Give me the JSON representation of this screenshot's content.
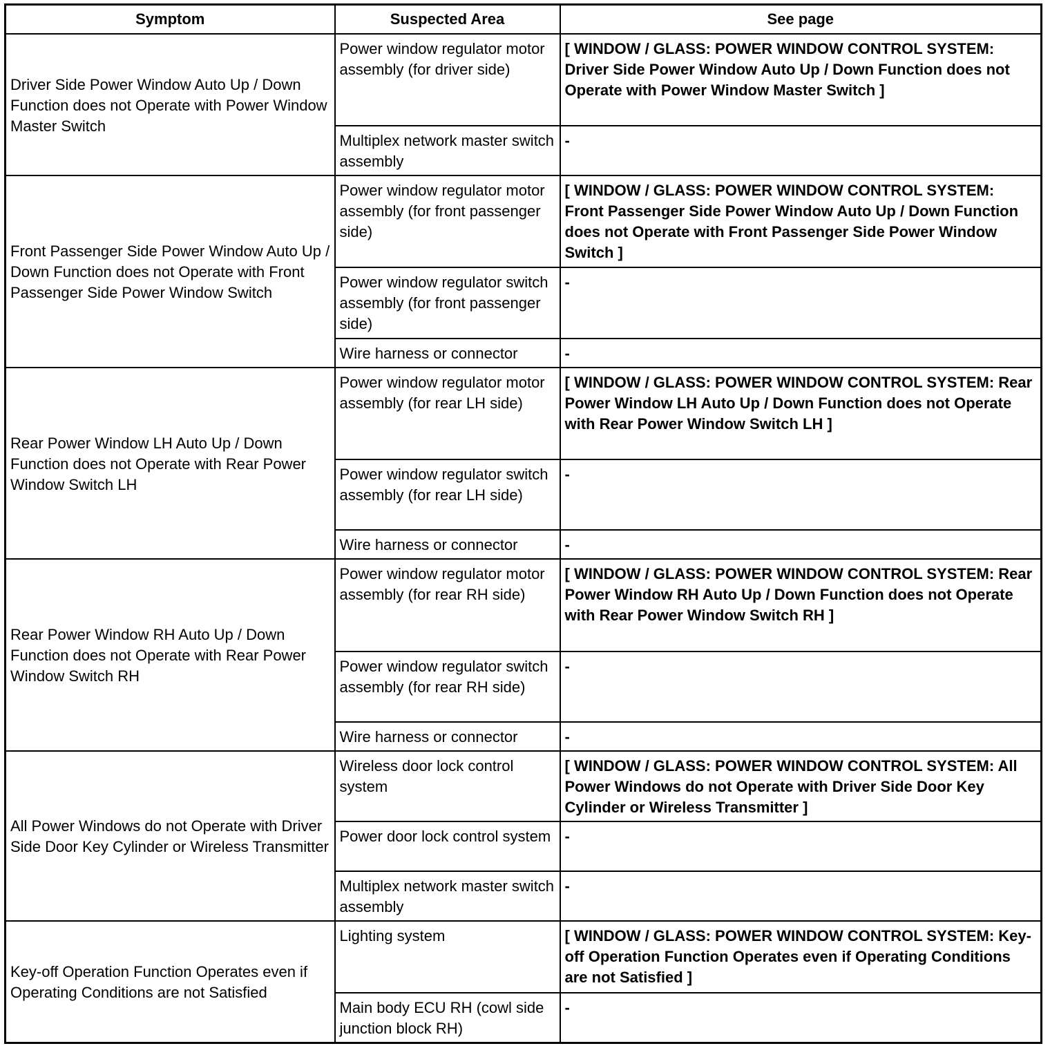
{
  "headers": [
    "Symptom",
    "Suspected Area",
    "See page"
  ],
  "groups": [
    {
      "symptom": "Driver Side Power Window Auto Up / Down Function does not Operate with Power Window Master Switch",
      "rows": [
        {
          "area": "Power window regulator motor assembly (for driver side)",
          "see": "[ WINDOW / GLASS: POWER WINDOW CONTROL SYSTEM: Driver Side Power Window Auto Up / Down Function does not Operate with Power Window Master Switch ]"
        },
        {
          "area": "Multiplex network master switch assembly",
          "see": "-"
        }
      ]
    },
    {
      "symptom": "Front Passenger Side Power Window Auto Up / Down Function does not Operate with Front Passenger Side Power Window Switch",
      "rows": [
        {
          "area": "Power window regulator motor assembly (for front passenger side)",
          "see": "[ WINDOW / GLASS: POWER WINDOW CONTROL SYSTEM: Front Passenger Side Power Window Auto Up / Down Function does not Operate with Front Passenger Side Power Window Switch ]"
        },
        {
          "area": "Power window regulator switch assembly (for front passenger side)",
          "see": "-"
        },
        {
          "area": "Wire harness or connector",
          "see": "-"
        }
      ]
    },
    {
      "symptom": "Rear Power Window LH Auto Up / Down Function does not Operate with Rear Power Window Switch LH",
      "rows": [
        {
          "area": "Power window regulator motor assembly (for rear LH side)",
          "see": "[ WINDOW / GLASS: POWER WINDOW CONTROL SYSTEM: Rear Power Window LH Auto Up / Down Function does not Operate with Rear Power Window Switch LH ]"
        },
        {
          "area": "Power window regulator switch assembly (for rear LH side)",
          "see": "-"
        },
        {
          "area": "Wire harness or connector",
          "see": "-"
        }
      ]
    },
    {
      "symptom": "Rear Power Window RH Auto Up / Down Function does not Operate with Rear Power Window Switch RH",
      "rows": [
        {
          "area": "Power window regulator motor assembly (for rear RH side)",
          "see": "[ WINDOW / GLASS: POWER WINDOW CONTROL SYSTEM: Rear Power Window RH Auto Up / Down Function does not Operate with Rear Power Window Switch RH ]"
        },
        {
          "area": "Power window regulator switch assembly (for rear RH side)",
          "see": "-"
        },
        {
          "area": "Wire harness or connector",
          "see": "-"
        }
      ]
    },
    {
      "symptom": "All Power Windows do not Operate with Driver Side Door Key Cylinder or Wireless Transmitter",
      "rows": [
        {
          "area": "Wireless door lock control system",
          "see": "[ WINDOW / GLASS: POWER WINDOW CONTROL SYSTEM: All Power Windows do not Operate with Driver Side Door Key Cylinder or Wireless Transmitter ]"
        },
        {
          "area": "Power door lock control system",
          "see": "-"
        },
        {
          "area": "Multiplex network master switch assembly",
          "see": "-"
        }
      ]
    },
    {
      "symptom": "Key-off Operation Function Operates even if Operating Conditions are not Satisfied",
      "rows": [
        {
          "area": "Lighting system",
          "see": "[ WINDOW / GLASS: POWER WINDOW CONTROL SYSTEM: Key-off Operation Function Operates even if Operating Conditions are not Satisfied ]"
        },
        {
          "area": "Main body ECU RH (cowl side junction block RH)",
          "see": "-"
        }
      ]
    }
  ]
}
